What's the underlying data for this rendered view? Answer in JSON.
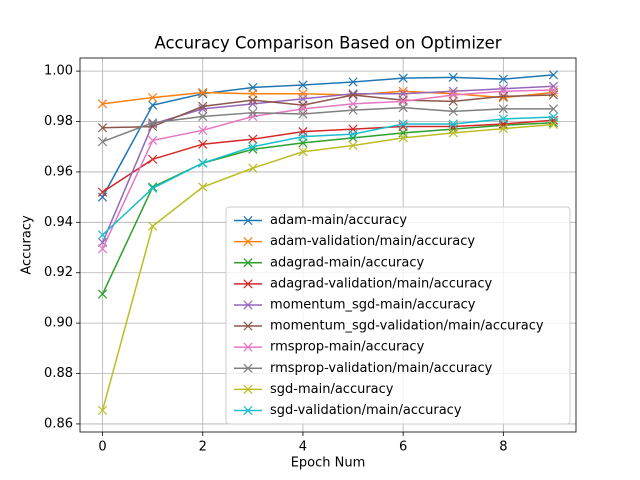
{
  "chart_data": {
    "type": "line",
    "title": "Accuracy Comparison Based on Optimizer",
    "xlabel": "Epoch Num",
    "ylabel": "Accuracy",
    "x": [
      0,
      1,
      2,
      3,
      4,
      5,
      6,
      7,
      8,
      9
    ],
    "series": [
      {
        "name": "adam-main/accuracy",
        "color": "#1f77b4",
        "values": [
          0.95,
          0.9865,
          0.991,
          0.9935,
          0.9945,
          0.9957,
          0.9972,
          0.9975,
          0.9968,
          0.9985
        ]
      },
      {
        "name": "adam-validation/main/accuracy",
        "color": "#ff7f0e",
        "values": [
          0.987,
          0.9895,
          0.9915,
          0.991,
          0.991,
          0.9905,
          0.992,
          0.991,
          0.9895,
          0.9915
        ]
      },
      {
        "name": "adagrad-main/accuracy",
        "color": "#2ca02c",
        "values": [
          0.9115,
          0.954,
          0.9635,
          0.969,
          0.9715,
          0.9735,
          0.9755,
          0.977,
          0.9785,
          0.9795
        ]
      },
      {
        "name": "adagrad-validation/main/accuracy",
        "color": "#d62728",
        "values": [
          0.952,
          0.965,
          0.971,
          0.973,
          0.976,
          0.977,
          0.978,
          0.978,
          0.979,
          0.9805
        ]
      },
      {
        "name": "momentum_sgd-main/accuracy",
        "color": "#9467bd",
        "values": [
          0.932,
          0.979,
          0.985,
          0.987,
          0.989,
          0.991,
          0.991,
          0.992,
          0.993,
          0.994
        ]
      },
      {
        "name": "momentum_sgd-validation/main/accuracy",
        "color": "#8c564b",
        "values": [
          0.9775,
          0.978,
          0.986,
          0.9885,
          0.9865,
          0.9905,
          0.9885,
          0.988,
          0.99,
          0.9905
        ]
      },
      {
        "name": "rmsprop-main/accuracy",
        "color": "#e377c2",
        "values": [
          0.9295,
          0.9725,
          0.9765,
          0.982,
          0.985,
          0.987,
          0.988,
          0.9905,
          0.992,
          0.9925
        ]
      },
      {
        "name": "rmsprop-validation/main/accuracy",
        "color": "#7f7f7f",
        "values": [
          0.972,
          0.9795,
          0.982,
          0.9835,
          0.983,
          0.9845,
          0.9855,
          0.984,
          0.985,
          0.985
        ]
      },
      {
        "name": "sgd-main/accuracy",
        "color": "#bcbd22",
        "values": [
          0.8654,
          0.9385,
          0.954,
          0.9615,
          0.968,
          0.9705,
          0.9735,
          0.9755,
          0.9772,
          0.9788
        ]
      },
      {
        "name": "sgd-validation/main/accuracy",
        "color": "#17becf",
        "values": [
          0.935,
          0.9535,
          0.9635,
          0.97,
          0.974,
          0.975,
          0.979,
          0.979,
          0.981,
          0.9818
        ]
      }
    ],
    "xlim": [
      -0.45,
      9.45
    ],
    "xticks": [
      0,
      2,
      4,
      6,
      8
    ],
    "ylim": [
      0.8568,
      1.0052
    ],
    "yticks": [
      0.86,
      0.88,
      {
        "value": 0.9,
        "label": "0.90"
      },
      0.92,
      0.94,
      0.96,
      0.98,
      {
        "value": 1,
        "label": "1.00"
      }
    ],
    "grid": true,
    "legend": "lower right"
  }
}
